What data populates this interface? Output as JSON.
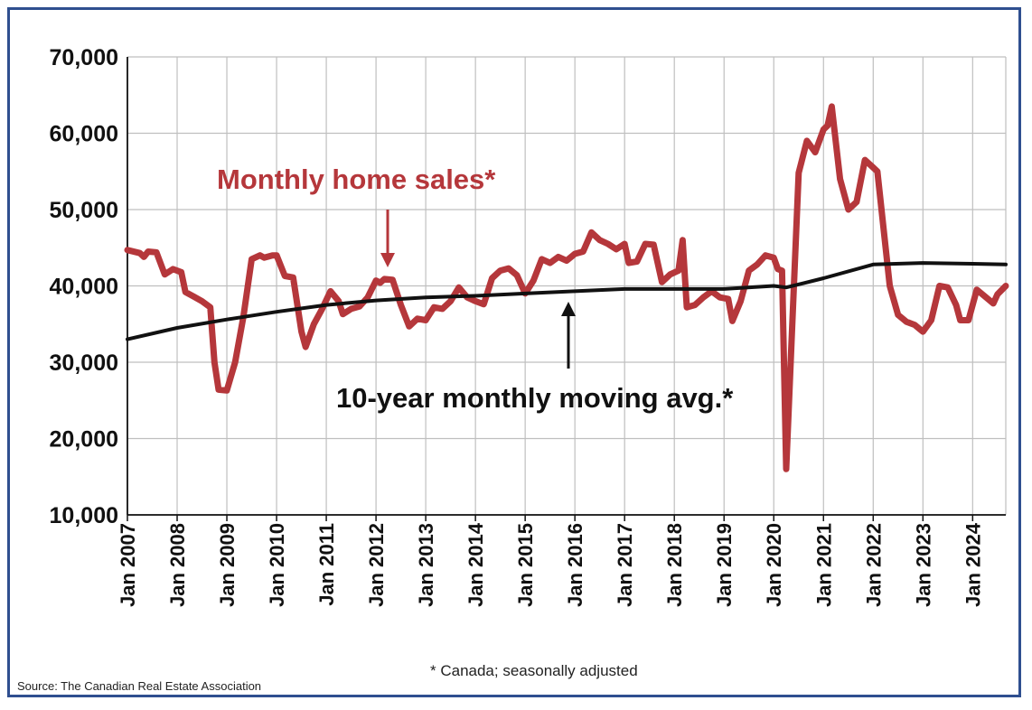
{
  "chart_data": {
    "type": "line",
    "y_ticks": [
      "70,000",
      "60,000",
      "50,000",
      "40,000",
      "30,000",
      "20,000",
      "10,000"
    ],
    "ylim": [
      10000,
      70000
    ],
    "x_ticks": [
      "Jan 2007",
      "Jan 2008",
      "Jan 2009",
      "Jan 2010",
      "Jan 2011",
      "Jan 2012",
      "Jan 2013",
      "Jan 2014",
      "Jan 2015",
      "Jan 2016",
      "Jan 2017",
      "Jan 2018",
      "Jan 2019",
      "Jan 2020",
      "Jan 2021",
      "Jan 2022",
      "Jan 2023",
      "Jan 2024"
    ],
    "xlim": [
      "2007-01",
      "2024-09"
    ],
    "grid": true,
    "colors": {
      "monthly": "#b5373b",
      "moving_avg": "#111111",
      "grid": "#bfbfbf",
      "frame": "#2f4f8f"
    },
    "annotations": {
      "monthly_label": "Monthly home sales*",
      "moving_avg_label": "10-year monthly moving avg.*"
    },
    "series": [
      {
        "name": "Monthly home sales*",
        "points": [
          [
            "2007-01",
            44700
          ],
          [
            "2007-04",
            44300
          ],
          [
            "2007-05",
            43800
          ],
          [
            "2007-06",
            44500
          ],
          [
            "2007-08",
            44400
          ],
          [
            "2007-10",
            41500
          ],
          [
            "2007-12",
            42200
          ],
          [
            "2008-02",
            41800
          ],
          [
            "2008-03",
            39200
          ],
          [
            "2008-05",
            38600
          ],
          [
            "2008-07",
            38000
          ],
          [
            "2008-09",
            37200
          ],
          [
            "2008-10",
            30000
          ],
          [
            "2008-11",
            26400
          ],
          [
            "2009-01",
            26300
          ],
          [
            "2009-03",
            30000
          ],
          [
            "2009-05",
            36000
          ],
          [
            "2009-07",
            43500
          ],
          [
            "2009-09",
            44000
          ],
          [
            "2009-10",
            43700
          ],
          [
            "2009-12",
            44000
          ],
          [
            "2010-01",
            44000
          ],
          [
            "2010-03",
            41300
          ],
          [
            "2010-05",
            41100
          ],
          [
            "2010-07",
            34000
          ],
          [
            "2010-08",
            32000
          ],
          [
            "2010-10",
            35000
          ],
          [
            "2010-12",
            37000
          ],
          [
            "2011-02",
            39300
          ],
          [
            "2011-04",
            38000
          ],
          [
            "2011-05",
            36300
          ],
          [
            "2011-07",
            37000
          ],
          [
            "2011-09",
            37300
          ],
          [
            "2011-11",
            38500
          ],
          [
            "2012-01",
            40700
          ],
          [
            "2012-02",
            40400
          ],
          [
            "2012-03",
            40900
          ],
          [
            "2012-05",
            40800
          ],
          [
            "2012-07",
            37500
          ],
          [
            "2012-09",
            34700
          ],
          [
            "2012-11",
            35700
          ],
          [
            "2013-01",
            35500
          ],
          [
            "2013-03",
            37200
          ],
          [
            "2013-05",
            37000
          ],
          [
            "2013-07",
            38000
          ],
          [
            "2013-09",
            39800
          ],
          [
            "2013-11",
            38500
          ],
          [
            "2014-01",
            38000
          ],
          [
            "2014-03",
            37600
          ],
          [
            "2014-05",
            41000
          ],
          [
            "2014-07",
            42000
          ],
          [
            "2014-09",
            42300
          ],
          [
            "2014-11",
            41400
          ],
          [
            "2015-01",
            39000
          ],
          [
            "2015-03",
            40700
          ],
          [
            "2015-05",
            43500
          ],
          [
            "2015-07",
            43000
          ],
          [
            "2015-09",
            43800
          ],
          [
            "2015-11",
            43300
          ],
          [
            "2016-01",
            44200
          ],
          [
            "2016-03",
            44500
          ],
          [
            "2016-05",
            47000
          ],
          [
            "2016-07",
            46000
          ],
          [
            "2016-09",
            45500
          ],
          [
            "2016-11",
            44800
          ],
          [
            "2017-01",
            45500
          ],
          [
            "2017-02",
            43000
          ],
          [
            "2017-04",
            43200
          ],
          [
            "2017-06",
            45500
          ],
          [
            "2017-08",
            45400
          ],
          [
            "2017-10",
            40500
          ],
          [
            "2017-12",
            41500
          ],
          [
            "2018-02",
            42000
          ],
          [
            "2018-03",
            46000
          ],
          [
            "2018-04",
            37200
          ],
          [
            "2018-06",
            37500
          ],
          [
            "2018-08",
            38500
          ],
          [
            "2018-10",
            39300
          ],
          [
            "2018-12",
            38500
          ],
          [
            "2019-02",
            38300
          ],
          [
            "2019-03",
            35400
          ],
          [
            "2019-05",
            38000
          ],
          [
            "2019-07",
            42000
          ],
          [
            "2019-09",
            42800
          ],
          [
            "2019-11",
            44000
          ],
          [
            "2020-01",
            43700
          ],
          [
            "2020-02",
            42200
          ],
          [
            "2020-03",
            42000
          ],
          [
            "2020-04",
            16000
          ],
          [
            "2020-05",
            29000
          ],
          [
            "2020-07",
            54800
          ],
          [
            "2020-09",
            59000
          ],
          [
            "2020-11",
            57500
          ],
          [
            "2021-01",
            60500
          ],
          [
            "2021-02",
            61000
          ],
          [
            "2021-03",
            63500
          ],
          [
            "2021-05",
            54000
          ],
          [
            "2021-07",
            50000
          ],
          [
            "2021-09",
            51000
          ],
          [
            "2021-11",
            56500
          ],
          [
            "2022-01",
            55500
          ],
          [
            "2022-02",
            55000
          ],
          [
            "2022-05",
            40000
          ],
          [
            "2022-07",
            36200
          ],
          [
            "2022-09",
            35300
          ],
          [
            "2022-11",
            34900
          ],
          [
            "2023-01",
            34000
          ],
          [
            "2023-03",
            35500
          ],
          [
            "2023-05",
            40000
          ],
          [
            "2023-07",
            39800
          ],
          [
            "2023-09",
            37500
          ],
          [
            "2023-10",
            35500
          ],
          [
            "2023-12",
            35500
          ],
          [
            "2024-02",
            39500
          ],
          [
            "2024-04",
            38600
          ],
          [
            "2024-06",
            37700
          ],
          [
            "2024-07",
            38900
          ],
          [
            "2024-09",
            40000
          ]
        ]
      },
      {
        "name": "10-year monthly moving avg.*",
        "points": [
          [
            "2007-01",
            33000
          ],
          [
            "2008-01",
            34500
          ],
          [
            "2009-01",
            35600
          ],
          [
            "2010-01",
            36600
          ],
          [
            "2011-01",
            37500
          ],
          [
            "2012-01",
            38100
          ],
          [
            "2013-01",
            38500
          ],
          [
            "2014-01",
            38700
          ],
          [
            "2015-01",
            39000
          ],
          [
            "2016-01",
            39300
          ],
          [
            "2017-01",
            39600
          ],
          [
            "2018-01",
            39600
          ],
          [
            "2019-01",
            39600
          ],
          [
            "2020-01",
            40000
          ],
          [
            "2020-04",
            39800
          ],
          [
            "2021-01",
            41000
          ],
          [
            "2022-01",
            42800
          ],
          [
            "2023-01",
            43000
          ],
          [
            "2024-01",
            42900
          ],
          [
            "2024-09",
            42800
          ]
        ]
      }
    ]
  },
  "footnote": "* Canada; seasonally adjusted",
  "source": "Source: The Canadian Real Estate Association"
}
